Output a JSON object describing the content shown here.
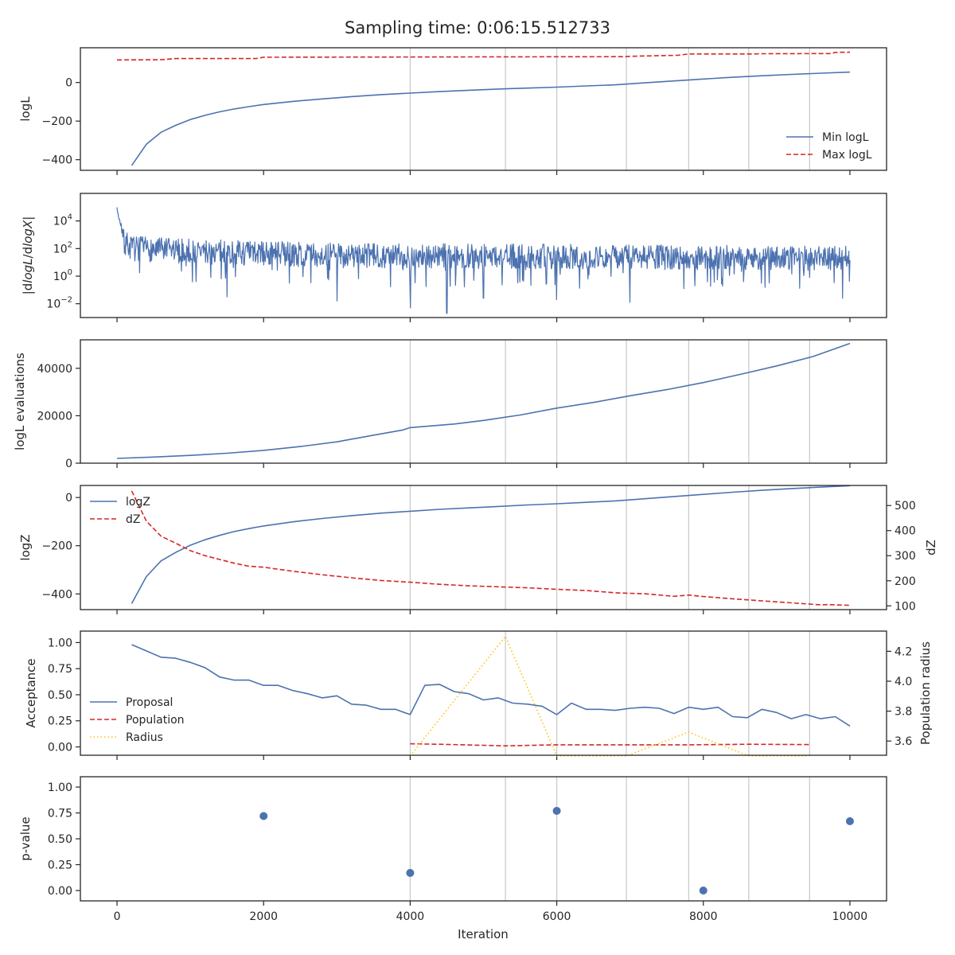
{
  "figure_title": "Sampling time: 0:06:15.512733",
  "chart_data": [
    {
      "type": "line",
      "ylabel": "logL",
      "xlim": [
        -500,
        10500
      ],
      "ylim": [
        -455,
        180
      ],
      "yticks": [
        0,
        -200,
        -400
      ],
      "ytick_labels": [
        "0",
        "−200",
        "−400"
      ],
      "legend_position": "lower-right",
      "series": [
        {
          "name": "Min logL",
          "color": "#4c72b0",
          "style": "solid",
          "x": [
            200,
            400,
            600,
            800,
            1000,
            1200,
            1400,
            1600,
            1800,
            2000,
            2400,
            2800,
            3200,
            3600,
            4000,
            4400,
            4800,
            5200,
            5600,
            6000,
            6400,
            6800,
            7200,
            7600,
            8000,
            8400,
            8800,
            9200,
            9600,
            10000
          ],
          "y": [
            -430,
            -320,
            -258,
            -222,
            -192,
            -170,
            -152,
            -137,
            -125,
            -114,
            -98,
            -85,
            -73,
            -63,
            -55,
            -47,
            -40,
            -34,
            -29,
            -24,
            -18,
            -12,
            -2,
            8,
            18,
            27,
            35,
            42,
            48,
            54
          ]
        },
        {
          "name": "Max logL",
          "color": "#d62728",
          "style": "dashed",
          "x": [
            0,
            600,
            800,
            1900,
            2000,
            6950,
            7000,
            7650,
            7800,
            8700,
            8800,
            9750,
            9800,
            10000
          ],
          "y": [
            117,
            118,
            124,
            124,
            131,
            134,
            136,
            141,
            148,
            148,
            149,
            150,
            156,
            157
          ]
        }
      ],
      "vlines": [
        4000,
        5300,
        6000,
        6950,
        7800,
        8620,
        9450
      ]
    },
    {
      "type": "line",
      "ylabel": "|dlogL/dlogX|",
      "ylog": true,
      "xlim": [
        -500,
        10500
      ],
      "ylim_log10": [
        -3,
        6
      ],
      "yticks_log10": [
        -2,
        0,
        2,
        4
      ],
      "ytick_labels": [
        "10−2",
        "100",
        "102",
        "104"
      ],
      "series": [
        {
          "name": "",
          "color": "#4c72b0",
          "style": "solid",
          "x_range": [
            0,
            10000
          ],
          "n_points": 1400,
          "center_log10": [
            [
              0,
              3.0
            ],
            [
              200,
              2.0
            ],
            [
              1000,
              1.8
            ],
            [
              3000,
              1.5
            ],
            [
              10000,
              1.3
            ]
          ],
          "dips": [
            [
              4000,
              -2.3
            ],
            [
              4500,
              -2.7
            ],
            [
              3000,
              -1.8
            ],
            [
              1500,
              -1.5
            ],
            [
              5000,
              -1.6
            ],
            [
              6000,
              -1.7
            ],
            [
              7000,
              -1.9
            ],
            [
              9900,
              -1.6
            ]
          ],
          "peak": [
            [
              0,
              4.8
            ],
            [
              50,
              3.8
            ]
          ]
        }
      ]
    },
    {
      "type": "line",
      "ylabel": "logL evaluations",
      "xlim": [
        -500,
        10500
      ],
      "ylim": [
        0,
        52000
      ],
      "yticks": [
        0,
        20000,
        40000
      ],
      "ytick_labels": [
        "0",
        "20000",
        "40000"
      ],
      "series": [
        {
          "name": "",
          "color": "#4c72b0",
          "style": "solid",
          "x": [
            0,
            500,
            1000,
            1500,
            2000,
            2500,
            3000,
            3500,
            3900,
            4000,
            4600,
            5000,
            5500,
            6000,
            6500,
            7000,
            7500,
            8000,
            8500,
            9000,
            9500,
            10000
          ],
          "y": [
            2000,
            2600,
            3300,
            4200,
            5400,
            7000,
            9000,
            11800,
            14000,
            15000,
            16500,
            18000,
            20300,
            23200,
            25600,
            28400,
            31000,
            34000,
            37400,
            41000,
            45000,
            50500
          ]
        }
      ],
      "vlines": [
        4000,
        5300,
        6000,
        6950,
        7800,
        8620,
        9450
      ]
    },
    {
      "type": "line",
      "ylabel": "logZ",
      "y2label": "dZ",
      "xlim": [
        -500,
        10500
      ],
      "ylim": [
        -465,
        50
      ],
      "yticks": [
        0,
        -200,
        -400
      ],
      "ytick_labels": [
        "0",
        "−200",
        "−400"
      ],
      "y2lim": [
        85,
        580
      ],
      "y2ticks": [
        100,
        200,
        300,
        400,
        500
      ],
      "y2tick_labels": [
        "100",
        "200",
        "300",
        "400",
        "500"
      ],
      "legend_position": "upper-left",
      "series": [
        {
          "name": "logZ",
          "color": "#4c72b0",
          "style": "solid",
          "axis": "left",
          "x": [
            200,
            400,
            600,
            800,
            1000,
            1200,
            1400,
            1600,
            1800,
            2000,
            2400,
            2800,
            3200,
            3600,
            4000,
            4400,
            4800,
            5200,
            5600,
            6000,
            6400,
            6800,
            7200,
            7600,
            8000,
            8400,
            8800,
            9200,
            9600,
            10000
          ],
          "y": [
            -440,
            -328,
            -263,
            -228,
            -198,
            -175,
            -157,
            -141,
            -129,
            -118,
            -101,
            -87,
            -75,
            -65,
            -57,
            -49,
            -43,
            -37,
            -31,
            -26,
            -20,
            -14,
            -5,
            4,
            13,
            22,
            30,
            37,
            43,
            49
          ]
        },
        {
          "name": "dZ",
          "color": "#d62728",
          "style": "dashed",
          "axis": "right",
          "x": [
            200,
            400,
            600,
            800,
            1000,
            1200,
            1400,
            1600,
            1800,
            2000,
            2400,
            2800,
            3200,
            3600,
            4000,
            4400,
            4800,
            5200,
            5600,
            6000,
            6400,
            6800,
            7200,
            7600,
            7800,
            8000,
            8400,
            8800,
            9200,
            9600,
            9700,
            10000
          ],
          "y": [
            558,
            438,
            378,
            350,
            320,
            300,
            285,
            270,
            258,
            254,
            238,
            224,
            212,
            201,
            194,
            186,
            180,
            176,
            172,
            166,
            161,
            152,
            148,
            138,
            143,
            137,
            128,
            120,
            112,
            104,
            105,
            102
          ]
        }
      ],
      "vlines": [
        4000,
        5300,
        6000,
        6950,
        7800,
        8620,
        9450
      ]
    },
    {
      "type": "line",
      "ylabel": "Acceptance",
      "y2label": "Population radius",
      "xlim": [
        -500,
        10500
      ],
      "ylim": [
        -0.08,
        1.11
      ],
      "yticks": [
        0.0,
        0.25,
        0.5,
        0.75,
        1.0
      ],
      "ytick_labels": [
        "0.00",
        "0.25",
        "0.50",
        "0.75",
        "1.00"
      ],
      "y2lim": [
        3.505,
        4.335
      ],
      "y2ticks": [
        3.6,
        3.8,
        4.0,
        4.2
      ],
      "y2tick_labels": [
        "3.6",
        "3.8",
        "4.0",
        "4.2"
      ],
      "legend_position": "lower-left",
      "series": [
        {
          "name": "Proposal",
          "color": "#4c72b0",
          "style": "solid",
          "axis": "left",
          "x": [
            200,
            400,
            600,
            800,
            1000,
            1200,
            1400,
            1600,
            1800,
            2000,
            2200,
            2400,
            2600,
            2800,
            3000,
            3200,
            3400,
            3600,
            3800,
            4000,
            4200,
            4400,
            4600,
            4800,
            5000,
            5200,
            5400,
            5600,
            5800,
            6000,
            6200,
            6400,
            6600,
            6800,
            7000,
            7200,
            7400,
            7600,
            7800,
            8000,
            8200,
            8400,
            8600,
            8800,
            9000,
            9200,
            9400,
            9600,
            9800,
            10000
          ],
          "y": [
            0.98,
            0.92,
            0.86,
            0.85,
            0.81,
            0.76,
            0.67,
            0.64,
            0.64,
            0.59,
            0.59,
            0.54,
            0.51,
            0.47,
            0.49,
            0.41,
            0.4,
            0.36,
            0.36,
            0.31,
            0.59,
            0.6,
            0.53,
            0.51,
            0.45,
            0.47,
            0.42,
            0.41,
            0.39,
            0.31,
            0.42,
            0.36,
            0.36,
            0.35,
            0.37,
            0.38,
            0.37,
            0.32,
            0.38,
            0.36,
            0.38,
            0.29,
            0.28,
            0.36,
            0.33,
            0.27,
            0.31,
            0.27,
            0.29,
            0.2
          ]
        },
        {
          "name": "Population",
          "color": "#d62728",
          "style": "dashed",
          "axis": "left",
          "x": [
            4000,
            4400,
            5300,
            6000,
            6950,
            7800,
            8620,
            9450
          ],
          "y": [
            0.03,
            0.025,
            0.01,
            0.02,
            0.02,
            0.02,
            0.025,
            0.022
          ]
        },
        {
          "name": "Radius",
          "color": "#ffc20a",
          "style": "dotted",
          "axis": "right",
          "x": [
            4000,
            5300,
            6000,
            6950,
            7800,
            8620,
            9450
          ],
          "y": [
            3.5,
            4.3,
            3.5,
            3.5,
            3.66,
            3.5,
            3.5
          ]
        }
      ],
      "vlines": [
        4000,
        5300,
        6000,
        6950,
        7800,
        8620,
        9450
      ]
    },
    {
      "type": "scatter",
      "ylabel": "p-value",
      "xlabel": "Iteration",
      "xlim": [
        -500,
        10500
      ],
      "ylim": [
        -0.1,
        1.1
      ],
      "yticks": [
        0.0,
        0.25,
        0.5,
        0.75,
        1.0
      ],
      "ytick_labels": [
        "0.00",
        "0.25",
        "0.50",
        "0.75",
        "1.00"
      ],
      "xticks": [
        0,
        2000,
        4000,
        6000,
        8000,
        10000
      ],
      "xtick_labels": [
        "0",
        "2000",
        "4000",
        "6000",
        "8000",
        "10000"
      ],
      "series": [
        {
          "name": "",
          "color": "#4c72b0",
          "x": [
            2000,
            4000,
            6000,
            8000,
            10000
          ],
          "y": [
            0.72,
            0.17,
            0.77,
            0.0,
            0.67
          ]
        }
      ],
      "vlines": [
        4000,
        5300,
        6000,
        6950,
        7800,
        8620,
        9450
      ]
    }
  ]
}
